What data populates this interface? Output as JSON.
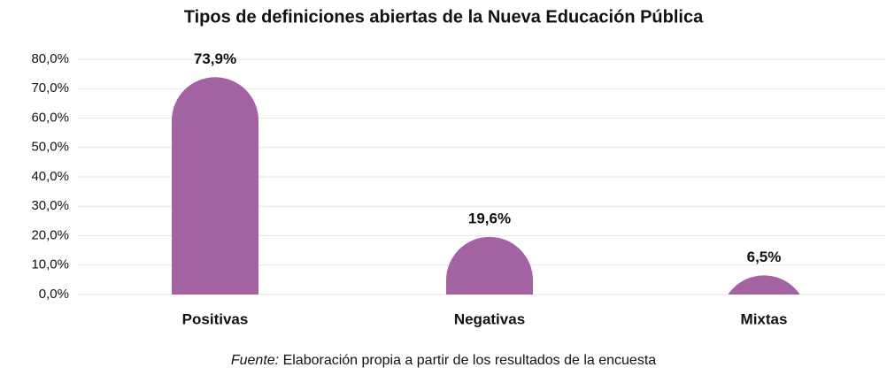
{
  "chart_data": {
    "type": "bar",
    "title": "Tipos de definiciones abiertas de la Nueva Educación Pública",
    "categories": [
      "Positivas",
      "Negativas",
      "Mixtas"
    ],
    "values": [
      73.9,
      19.6,
      6.5
    ],
    "value_labels": [
      "73,9%",
      "19,6%",
      "6,5%"
    ],
    "color": "#a363a3",
    "ylim": [
      0,
      80
    ],
    "yticks": [
      {
        "value": 0,
        "label": "0,0%"
      },
      {
        "value": 10,
        "label": "10,0%"
      },
      {
        "value": 20,
        "label": "20,0%"
      },
      {
        "value": 30,
        "label": "30,0%"
      },
      {
        "value": 40,
        "label": "40,0%"
      },
      {
        "value": 50,
        "label": "50,0%"
      },
      {
        "value": 60,
        "label": "60,0%"
      },
      {
        "value": 70,
        "label": "70,0%"
      },
      {
        "value": 80,
        "label": "80,0%"
      }
    ],
    "grid": true,
    "source_label": "Fuente:",
    "source": "Elaboración propia a partir de los resultados de la encuesta"
  }
}
